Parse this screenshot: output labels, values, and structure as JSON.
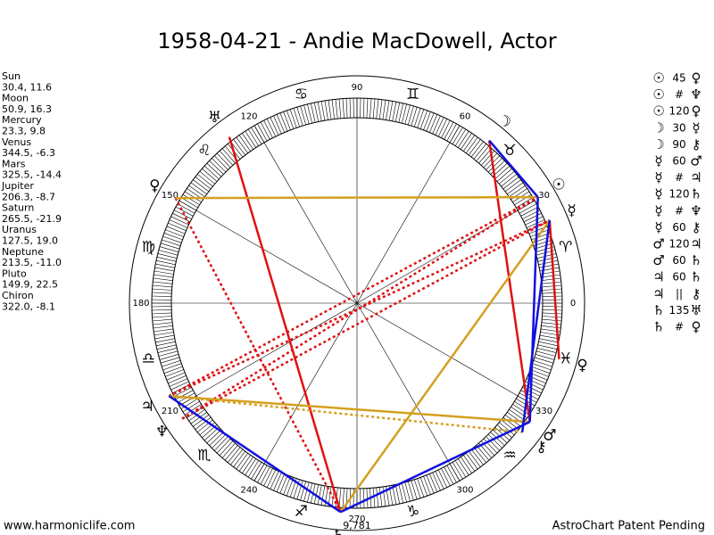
{
  "title": "1958-04-21 - Andie MacDowell, Actor",
  "planets": [
    {
      "name": "Sun",
      "glyph": "☉",
      "position": "30.4, 11.6"
    },
    {
      "name": "Moon",
      "glyph": "☽",
      "position": "50.9, 16.3"
    },
    {
      "name": "Mercury",
      "glyph": "☿",
      "position": "23.3, 9.8"
    },
    {
      "name": "Venus",
      "glyph": "♀",
      "position": "344.5, -6.3"
    },
    {
      "name": "Mars",
      "glyph": "♂",
      "position": "325.5, -14.4"
    },
    {
      "name": "Jupiter",
      "glyph": "♃",
      "position": "206.3, -8.7"
    },
    {
      "name": "Saturn",
      "glyph": "♄",
      "position": "265.5, -21.9"
    },
    {
      "name": "Uranus",
      "glyph": "♅",
      "position": "127.5, 19.0"
    },
    {
      "name": "Neptune",
      "glyph": "♆",
      "position": "213.5, -11.0"
    },
    {
      "name": "Pluto",
      "glyph": "♀",
      "position": "149.9, 22.5"
    },
    {
      "name": "Chiron",
      "glyph": "⚷",
      "position": "322.0, -8.1"
    }
  ],
  "signs": [
    "♈",
    "♉",
    "♊",
    "♋",
    "♌",
    "♍",
    "♎",
    "♏",
    "♐",
    "♑",
    "♒",
    "♓"
  ],
  "degree_labels": [
    0,
    30,
    60,
    90,
    120,
    150,
    180,
    210,
    240,
    270,
    300,
    330
  ],
  "bottom_label": "9,781",
  "aspects": [
    [
      "☉",
      "45",
      "♀"
    ],
    [
      "☉",
      "#",
      "♆"
    ],
    [
      "☉",
      "120",
      "♀"
    ],
    [
      "☽",
      "30",
      "☿"
    ],
    [
      "☽",
      "90",
      "⚷"
    ],
    [
      "☿",
      "60",
      "♂"
    ],
    [
      "☿",
      "#",
      "♃"
    ],
    [
      "☿",
      "120",
      "♄"
    ],
    [
      "☿",
      "#",
      "♆"
    ],
    [
      "☿",
      "60",
      "⚷"
    ],
    [
      "♂",
      "120",
      "♃"
    ],
    [
      "♂",
      "60",
      "♄"
    ],
    [
      "♃",
      "60",
      "♄"
    ],
    [
      "♃",
      "||",
      "⚷"
    ],
    [
      "♄",
      "135",
      "♅"
    ],
    [
      "♄",
      "#",
      "♀"
    ]
  ],
  "aspect_lines": [
    {
      "from": "Moon",
      "to": "Mars",
      "color": "#e01010",
      "dashed": false
    },
    {
      "from": "Uranus",
      "to": "Saturn",
      "color": "#e01010",
      "dashed": false
    },
    {
      "from": "Mercury",
      "to": "Venus",
      "color": "#e01010",
      "dashed": false
    },
    {
      "from": "Pluto",
      "to": "Saturn",
      "color": "#e01010",
      "dashed": true
    },
    {
      "from": "Jupiter",
      "to": "Sun",
      "color": "#e01010",
      "dashed": true
    },
    {
      "from": "Jupiter",
      "to": "Mercury",
      "color": "#e01010",
      "dashed": true
    },
    {
      "from": "Neptune",
      "to": "Sun",
      "color": "#e01010",
      "dashed": true
    },
    {
      "from": "Neptune",
      "to": "Mercury",
      "color": "#e01010",
      "dashed": true
    },
    {
      "from": "Pluto",
      "to": "Sun",
      "color": "#d4a020",
      "dashed": false
    },
    {
      "from": "Jupiter",
      "to": "Mars",
      "color": "#d4a020",
      "dashed": false
    },
    {
      "from": "Saturn",
      "to": "Mercury",
      "color": "#d4a020",
      "dashed": false
    },
    {
      "from": "Jupiter",
      "to": "Chiron",
      "color": "#d4a020",
      "dashed": true
    },
    {
      "from": "Moon",
      "to": "Sun",
      "color": "#1010e0",
      "dashed": false
    },
    {
      "from": "Sun",
      "to": "Mars",
      "color": "#1010e0",
      "dashed": false
    },
    {
      "from": "Mercury",
      "to": "Chiron",
      "color": "#1010e0",
      "dashed": false
    },
    {
      "from": "Saturn",
      "to": "Mars",
      "color": "#1010e0",
      "dashed": false
    },
    {
      "from": "Jupiter",
      "to": "Saturn",
      "color": "#1010e0",
      "dashed": false
    }
  ],
  "footer": {
    "left": "www.harmoniclife.com",
    "right": "AstroChart Patent Pending"
  }
}
